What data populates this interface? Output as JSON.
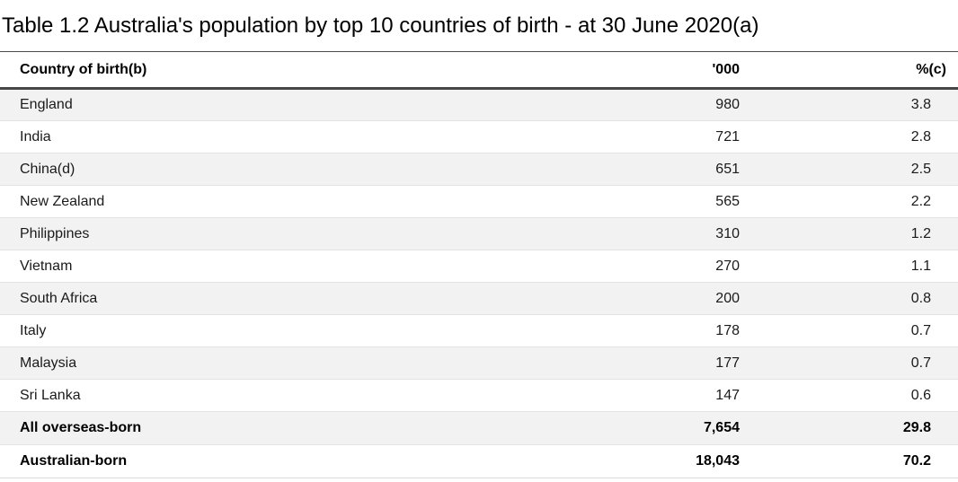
{
  "title": "Table 1.2 Australia's population by top 10 countries of birth - at 30 June 2020(a)",
  "table": {
    "headers": {
      "country": "Country of birth(b)",
      "thousands": "'000",
      "percent": "%(c)"
    },
    "rows": [
      {
        "country": "England",
        "thousands": "980",
        "percent": "3.8"
      },
      {
        "country": "India",
        "thousands": "721",
        "percent": "2.8"
      },
      {
        "country": "China(d)",
        "thousands": "651",
        "percent": "2.5"
      },
      {
        "country": "New Zealand",
        "thousands": "565",
        "percent": "2.2"
      },
      {
        "country": "Philippines",
        "thousands": "310",
        "percent": "1.2"
      },
      {
        "country": "Vietnam",
        "thousands": "270",
        "percent": "1.1"
      },
      {
        "country": "South Africa",
        "thousands": "200",
        "percent": "0.8"
      },
      {
        "country": "Italy",
        "thousands": "178",
        "percent": "0.7"
      },
      {
        "country": "Malaysia",
        "thousands": "177",
        "percent": "0.7"
      },
      {
        "country": "Sri Lanka",
        "thousands": "147",
        "percent": "0.6"
      },
      {
        "country": "All overseas-born",
        "thousands": "7,654",
        "percent": "29.8"
      },
      {
        "country": "Australian-born",
        "thousands": "18,043",
        "percent": "70.2"
      }
    ]
  },
  "colors": {
    "stripe": "#f2f2f2",
    "row_separator": "#e3e3e3",
    "header_rule": "#474747",
    "bottom_rule": "#d9d9d9",
    "text": "#1a1a1a"
  },
  "chart_data": {
    "type": "table",
    "title": "Table 1.2 Australia's population by top 10 countries of birth - at 30 June 2020(a)",
    "columns": [
      "Country of birth(b)",
      "'000",
      "%(c)"
    ],
    "rows": [
      [
        "England",
        980,
        3.8
      ],
      [
        "India",
        721,
        2.8
      ],
      [
        "China(d)",
        651,
        2.5
      ],
      [
        "New Zealand",
        565,
        2.2
      ],
      [
        "Philippines",
        310,
        1.2
      ],
      [
        "Vietnam",
        270,
        1.1
      ],
      [
        "South Africa",
        200,
        0.8
      ],
      [
        "Italy",
        178,
        0.7
      ],
      [
        "Malaysia",
        177,
        0.7
      ],
      [
        "Sri Lanka",
        147,
        0.6
      ],
      [
        "All overseas-born",
        7654,
        29.8
      ],
      [
        "Australian-born",
        18043,
        70.2
      ]
    ]
  }
}
